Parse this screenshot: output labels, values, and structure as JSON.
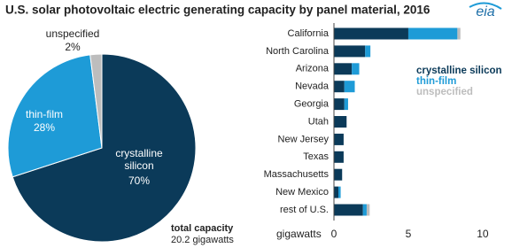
{
  "title": "U.S. solar photovoltaic electric generating capacity by panel material, 2016",
  "logo": "eia",
  "chart_data": [
    {
      "type": "pie",
      "categories": [
        "crystalline silicon",
        "thin-film",
        "unspecified"
      ],
      "values": [
        70,
        28,
        2
      ],
      "value_labels": [
        "70%",
        "28%",
        "2%"
      ],
      "colors": [
        "#0b3a59",
        "#1e9bd7",
        "#bdbdbd"
      ],
      "annotation": {
        "title": "total capacity",
        "text": "20.2 gigawatts"
      }
    },
    {
      "type": "stacked-bar-horizontal",
      "categories": [
        "California",
        "North Carolina",
        "Arizona",
        "Nevada",
        "Georgia",
        "Utah",
        "New Jersey",
        "Texas",
        "Massachusetts",
        "New Mexico",
        "rest of U.S."
      ],
      "series": [
        {
          "name": "crystalline silicon",
          "color": "#0b3a59",
          "values": [
            5.0,
            2.1,
            1.2,
            0.7,
            0.7,
            0.85,
            0.65,
            0.65,
            0.55,
            0.3,
            1.95
          ]
        },
        {
          "name": "thin-film",
          "color": "#1e9bd7",
          "values": [
            3.3,
            0.35,
            0.5,
            0.7,
            0.25,
            0,
            0,
            0,
            0,
            0.15,
            0.25
          ]
        },
        {
          "name": "unspecified",
          "color": "#bdbdbd",
          "values": [
            0.2,
            0,
            0,
            0,
            0,
            0,
            0,
            0,
            0,
            0,
            0.2
          ]
        }
      ],
      "xlabel": "gigawatts",
      "xlim": [
        0,
        10.6
      ],
      "xticks": [
        0,
        5,
        10
      ],
      "legend": "right"
    }
  ]
}
